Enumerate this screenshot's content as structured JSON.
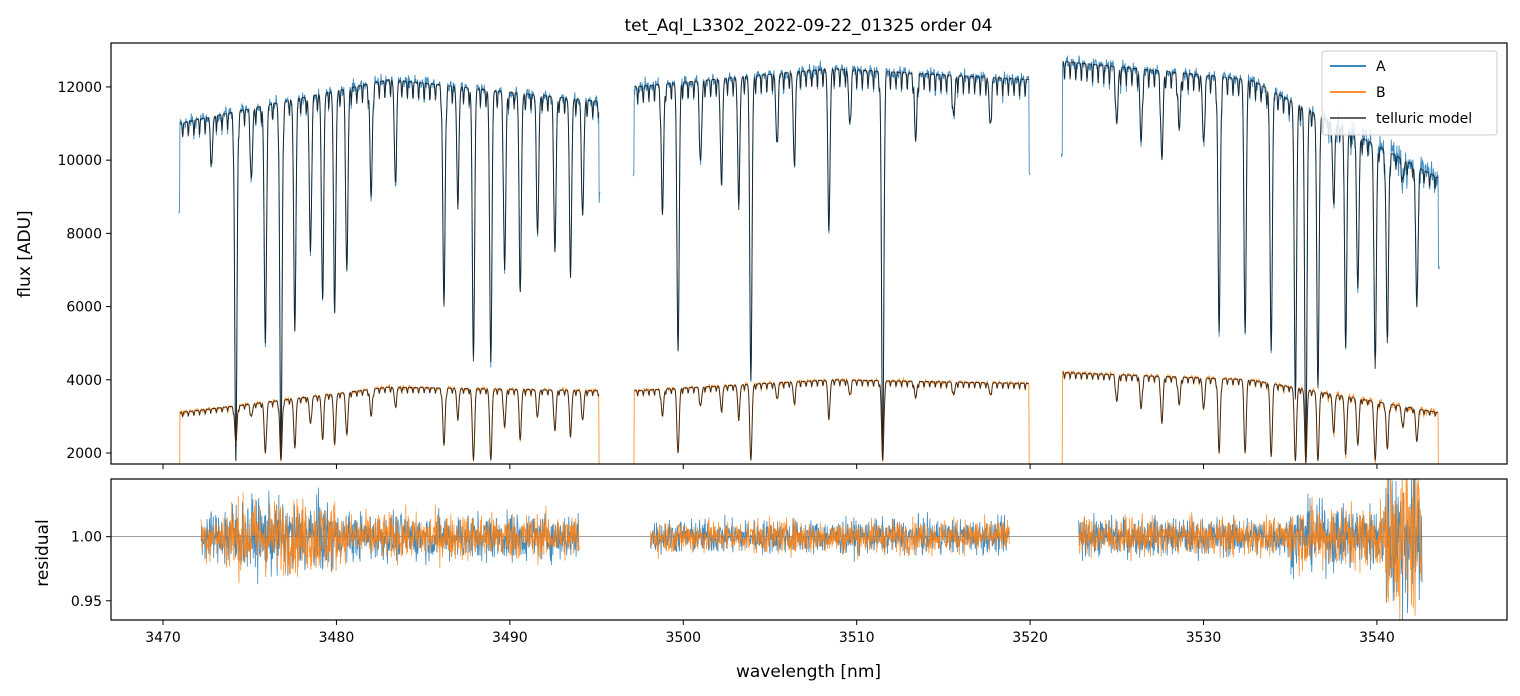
{
  "figure": {
    "title": "tet_Aql_L3302_2022-09-22_01325  order 04"
  },
  "chart_data": [
    {
      "type": "line",
      "panel": "top",
      "title": "tet_Aql_L3302_2022-09-22_01325  order 04",
      "xlabel": "",
      "ylabel": "flux [ADU]",
      "xlim": [
        3467,
        3547.5
      ],
      "ylim": [
        1700,
        13200
      ],
      "yticks": [
        2000,
        4000,
        6000,
        8000,
        10000,
        12000
      ],
      "xticks": [
        3470,
        3480,
        3490,
        3500,
        3510,
        3520,
        3530,
        3540
      ],
      "grid": false,
      "legend": "top-right",
      "segments": [
        {
          "x": [
            3470.9,
            3495.2
          ],
          "A_continuum": [
            11000,
            12200,
            11600
          ],
          "B_continuum": [
            3100,
            3800,
            3700
          ]
        },
        {
          "x": [
            3497.1,
            3520.0
          ],
          "A_continuum": [
            12000,
            12500,
            12200
          ],
          "B_continuum": [
            3700,
            4000,
            3900
          ]
        },
        {
          "x": [
            3521.8,
            3543.6
          ],
          "A_continuum": [
            12700,
            12200,
            9500
          ],
          "B_continuum": [
            4200,
            4000,
            3100
          ]
        }
      ],
      "absorption_lines": [
        {
          "x": 3472.8,
          "A": 10000,
          "B": 3300
        },
        {
          "x": 3474.2,
          "A": 1800,
          "B": 2300
        },
        {
          "x": 3475.1,
          "A": 9500,
          "B": 3000
        },
        {
          "x": 3475.9,
          "A": 5000,
          "B": 2000
        },
        {
          "x": 3476.8,
          "A": 1800,
          "B": 1800
        },
        {
          "x": 3477.6,
          "A": 5500,
          "B": 2200
        },
        {
          "x": 3478.5,
          "A": 7500,
          "B": 2800
        },
        {
          "x": 3479.2,
          "A": 6300,
          "B": 2400
        },
        {
          "x": 3479.9,
          "A": 6000,
          "B": 2300
        },
        {
          "x": 3480.6,
          "A": 7000,
          "B": 2500
        },
        {
          "x": 3482.0,
          "A": 9000,
          "B": 3000
        },
        {
          "x": 3483.4,
          "A": 9500,
          "B": 3300
        },
        {
          "x": 3486.2,
          "A": 6000,
          "B": 2200
        },
        {
          "x": 3487.0,
          "A": 9000,
          "B": 3000
        },
        {
          "x": 3487.9,
          "A": 4500,
          "B": 1800
        },
        {
          "x": 3488.9,
          "A": 4500,
          "B": 1800
        },
        {
          "x": 3489.7,
          "A": 7000,
          "B": 2700
        },
        {
          "x": 3490.6,
          "A": 6500,
          "B": 2400
        },
        {
          "x": 3491.6,
          "A": 8000,
          "B": 3000
        },
        {
          "x": 3492.6,
          "A": 7500,
          "B": 2600
        },
        {
          "x": 3493.5,
          "A": 7000,
          "B": 2500
        },
        {
          "x": 3494.2,
          "A": 8500,
          "B": 2900
        },
        {
          "x": 3498.8,
          "A": 8500,
          "B": 3000
        },
        {
          "x": 3499.7,
          "A": 4800,
          "B": 2000
        },
        {
          "x": 3501.0,
          "A": 10000,
          "B": 3300
        },
        {
          "x": 3502.2,
          "A": 9500,
          "B": 3200
        },
        {
          "x": 3503.2,
          "A": 9000,
          "B": 3000
        },
        {
          "x": 3503.9,
          "A": 4000,
          "B": 1800
        },
        {
          "x": 3505.4,
          "A": 10500,
          "B": 3500
        },
        {
          "x": 3506.4,
          "A": 10000,
          "B": 3400
        },
        {
          "x": 3508.4,
          "A": 8300,
          "B": 3000
        },
        {
          "x": 3509.6,
          "A": 11000,
          "B": 3600
        },
        {
          "x": 3511.5,
          "A": 1800,
          "B": 1800
        },
        {
          "x": 3513.4,
          "A": 10500,
          "B": 3500
        },
        {
          "x": 3515.6,
          "A": 11200,
          "B": 3600
        },
        {
          "x": 3517.7,
          "A": 11000,
          "B": 3600
        },
        {
          "x": 3525.0,
          "A": 11000,
          "B": 3400
        },
        {
          "x": 3526.4,
          "A": 10500,
          "B": 3200
        },
        {
          "x": 3527.6,
          "A": 10000,
          "B": 2800
        },
        {
          "x": 3528.6,
          "A": 10800,
          "B": 3300
        },
        {
          "x": 3530.0,
          "A": 10500,
          "B": 3200
        },
        {
          "x": 3530.9,
          "A": 5300,
          "B": 2000
        },
        {
          "x": 3532.4,
          "A": 5300,
          "B": 2000
        },
        {
          "x": 3533.9,
          "A": 4800,
          "B": 1900
        },
        {
          "x": 3535.3,
          "A": 3500,
          "B": 1800
        },
        {
          "x": 3535.9,
          "A": 1800,
          "B": 1800
        },
        {
          "x": 3536.6,
          "A": 3800,
          "B": 1800
        },
        {
          "x": 3537.5,
          "A": 9000,
          "B": 2600
        },
        {
          "x": 3538.2,
          "A": 5000,
          "B": 2000
        },
        {
          "x": 3538.9,
          "A": 6500,
          "B": 2200
        },
        {
          "x": 3539.9,
          "A": 4300,
          "B": 1800
        },
        {
          "x": 3540.6,
          "A": 5000,
          "B": 2100
        },
        {
          "x": 3541.5,
          "A": 9500,
          "B": 2700
        },
        {
          "x": 3542.3,
          "A": 6000,
          "B": 2300
        }
      ],
      "series": [
        {
          "name": "A",
          "color": "#1f77b4"
        },
        {
          "name": "B",
          "color": "#ff7f0e"
        },
        {
          "name": "telluric model",
          "color": "#000000"
        }
      ]
    },
    {
      "type": "line",
      "panel": "bottom",
      "xlabel": "wavelength [nm]",
      "ylabel": "residual",
      "xlim": [
        3467,
        3547.5
      ],
      "ylim": [
        0.935,
        1.045
      ],
      "yticks": [
        0.95,
        1.0
      ],
      "ytick_labels": [
        "0.95",
        "1.00"
      ],
      "xticks": [
        3470,
        3480,
        3490,
        3500,
        3510,
        3520,
        3530,
        3540
      ],
      "reference_line": 1.0,
      "grid": false,
      "segments": [
        {
          "x": [
            3472.2,
            3494.0
          ],
          "noise": 0.022
        },
        {
          "x": [
            3498.1,
            3518.8
          ],
          "noise": 0.016
        },
        {
          "x": [
            3522.8,
            3542.6
          ],
          "noise": 0.018
        }
      ]
    }
  ]
}
